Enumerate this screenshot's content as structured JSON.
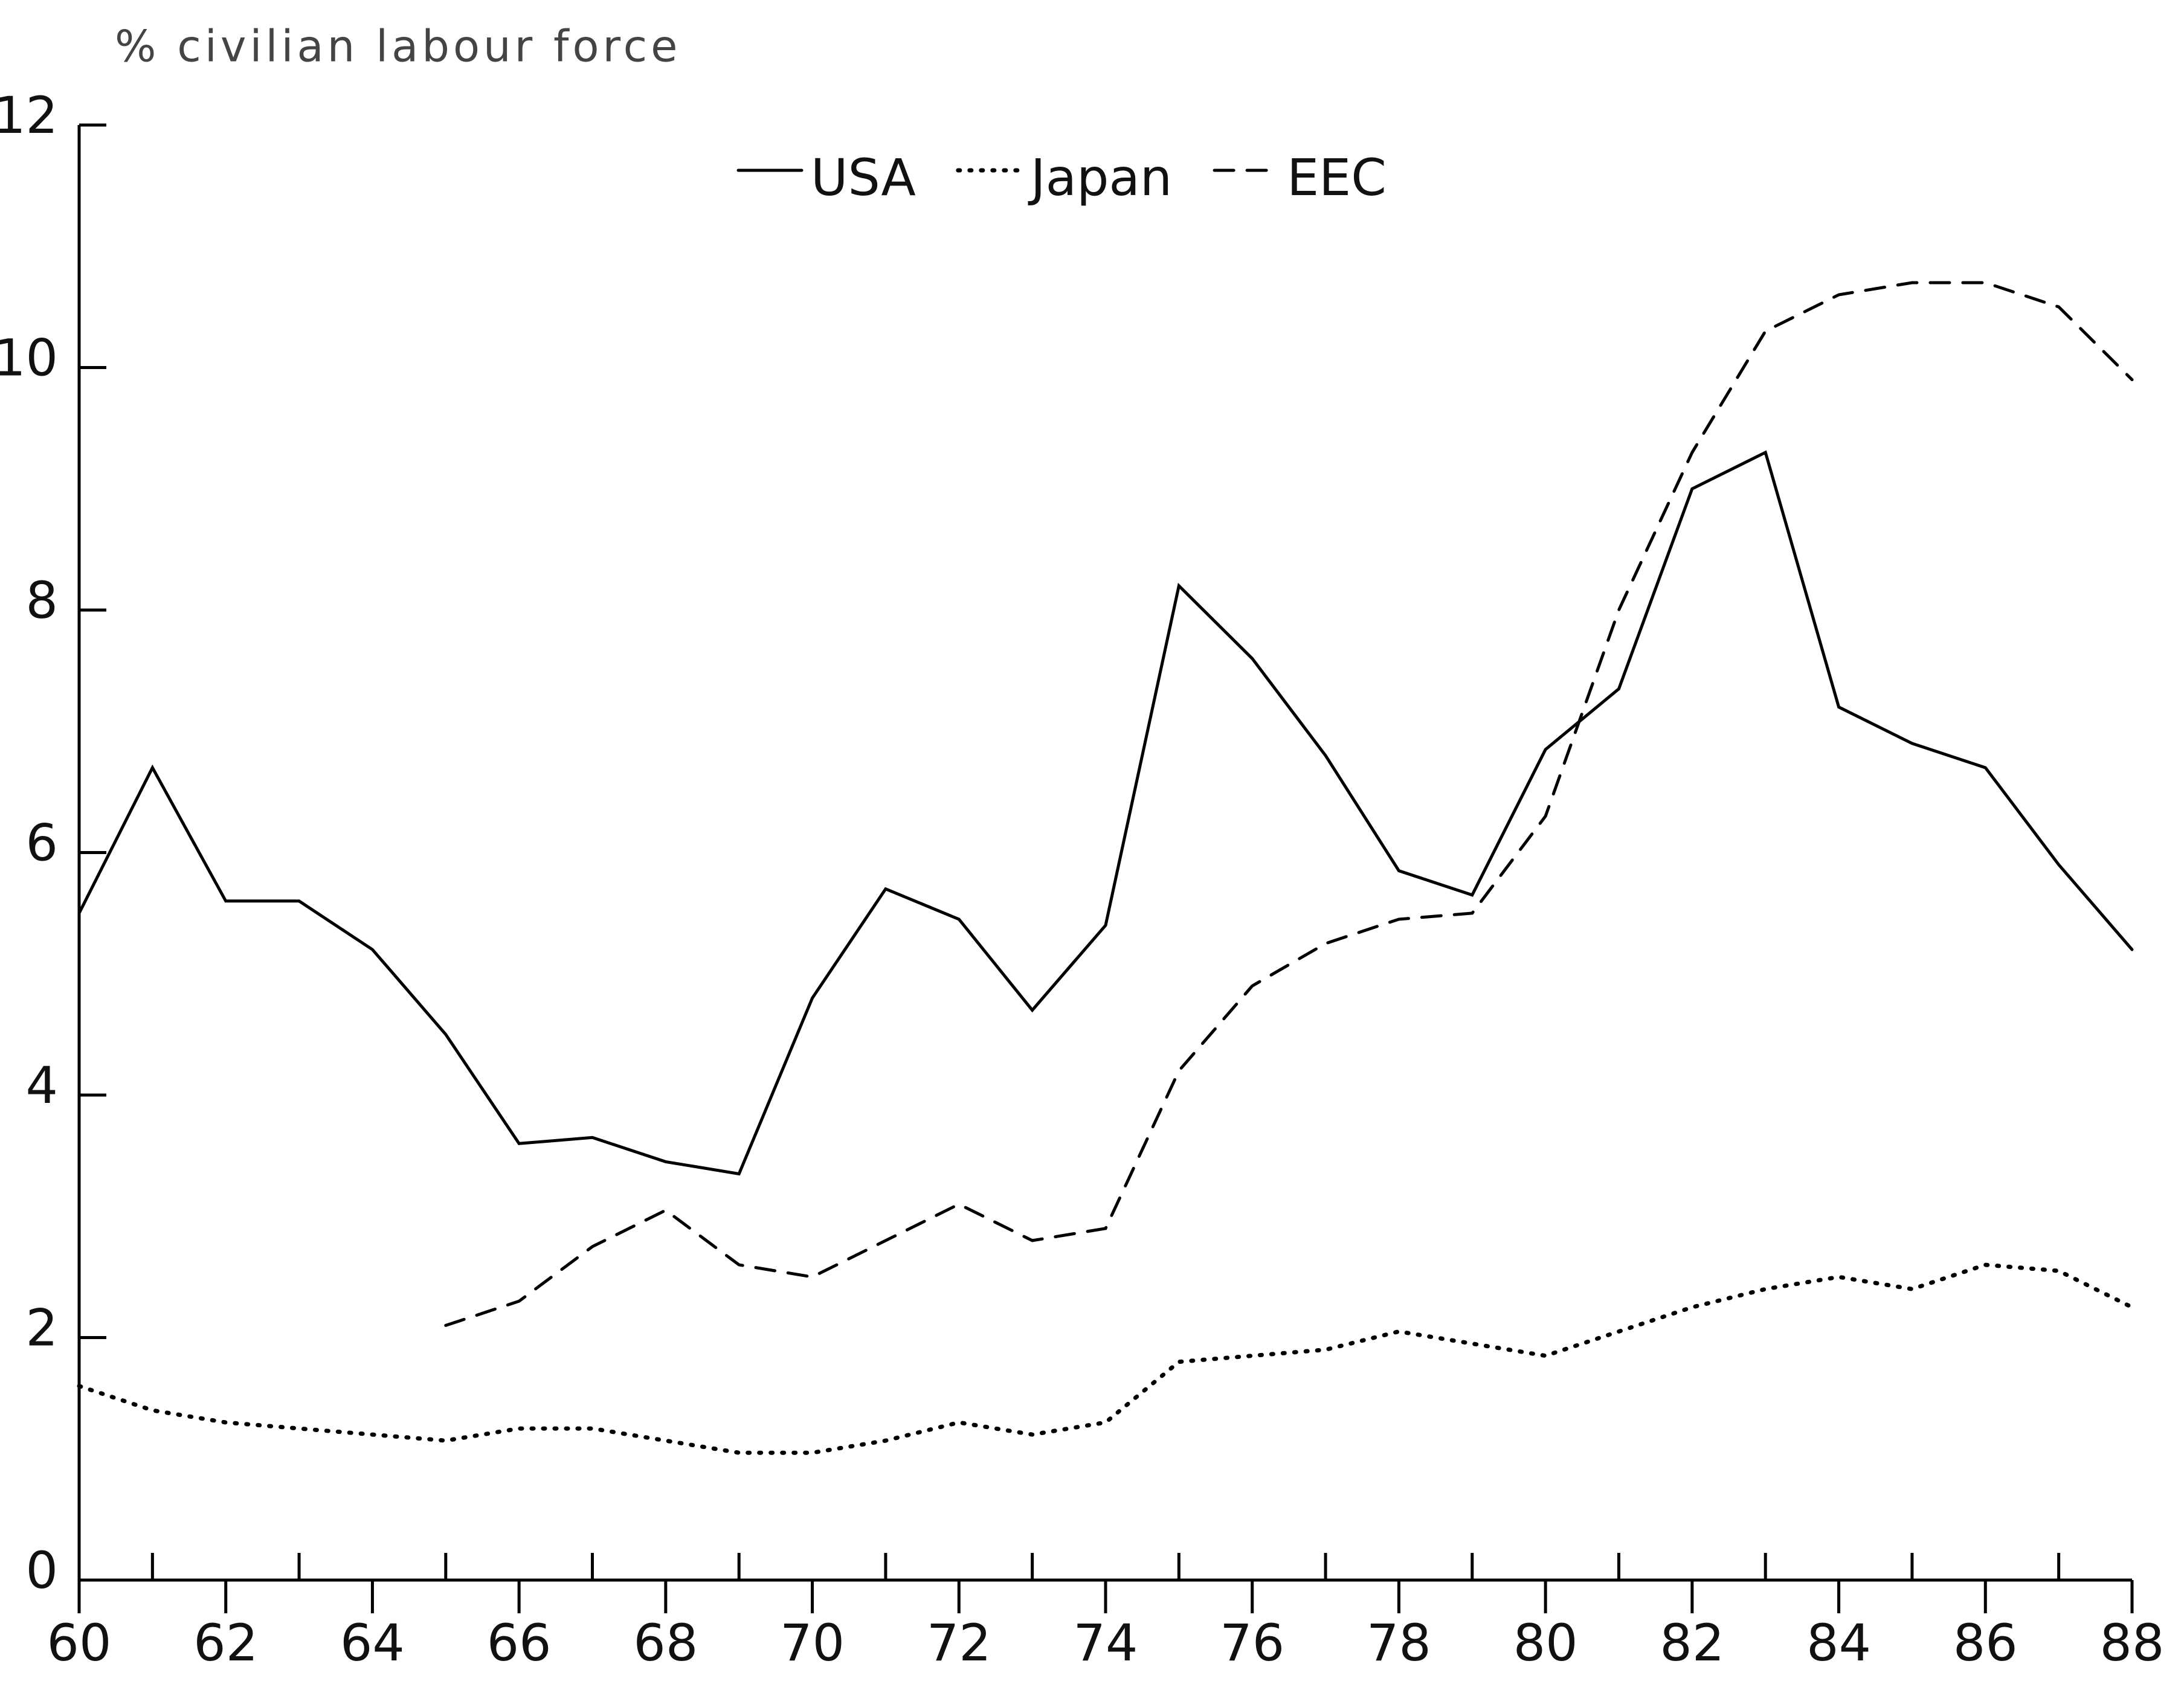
{
  "chart_data": {
    "type": "line",
    "title": "% civilian labour force",
    "x": [
      60,
      61,
      62,
      63,
      64,
      65,
      66,
      67,
      68,
      69,
      70,
      71,
      72,
      73,
      74,
      75,
      76,
      77,
      78,
      79,
      80,
      81,
      82,
      83,
      84,
      85,
      86,
      87,
      88
    ],
    "series": [
      {
        "name": "USA",
        "color": "#000000",
        "style": "solid",
        "values": [
          5.5,
          6.7,
          5.6,
          5.6,
          5.2,
          4.5,
          3.6,
          3.65,
          3.45,
          3.35,
          4.8,
          5.7,
          5.45,
          4.7,
          5.4,
          8.2,
          7.6,
          6.8,
          5.85,
          5.65,
          6.85,
          7.35,
          9.0,
          9.3,
          7.2,
          6.9,
          6.7,
          5.9,
          5.2
        ]
      },
      {
        "name": "Japan",
        "color": "#000000",
        "style": "dotted",
        "values": [
          1.6,
          1.4,
          1.3,
          1.25,
          1.2,
          1.15,
          1.25,
          1.25,
          1.15,
          1.05,
          1.05,
          1.15,
          1.3,
          1.2,
          1.3,
          1.8,
          1.85,
          1.9,
          2.05,
          1.95,
          1.85,
          2.05,
          2.25,
          2.4,
          2.5,
          2.4,
          2.6,
          2.55,
          2.25
        ]
      },
      {
        "name": "EEC",
        "color": "#000000",
        "style": "dashed",
        "values": [
          null,
          null,
          null,
          null,
          null,
          2.1,
          2.3,
          2.75,
          3.05,
          2.6,
          2.5,
          2.8,
          3.1,
          2.8,
          2.9,
          4.2,
          4.9,
          5.25,
          5.45,
          5.5,
          6.3,
          8.0,
          9.3,
          10.3,
          10.6,
          10.7,
          10.7,
          10.5,
          9.9
        ]
      }
    ],
    "xlim": [
      60,
      88
    ],
    "xticks": [
      60,
      62,
      64,
      66,
      68,
      70,
      72,
      74,
      76,
      78,
      80,
      82,
      84,
      86,
      88
    ],
    "xminorticks": [
      61,
      63,
      65,
      67,
      69,
      71,
      73,
      75,
      77,
      79,
      81,
      83,
      85,
      87
    ],
    "ylim": [
      0,
      12
    ],
    "yticks": [
      0,
      2,
      4,
      6,
      8,
      10,
      12
    ],
    "grid": false,
    "legend": "top"
  }
}
